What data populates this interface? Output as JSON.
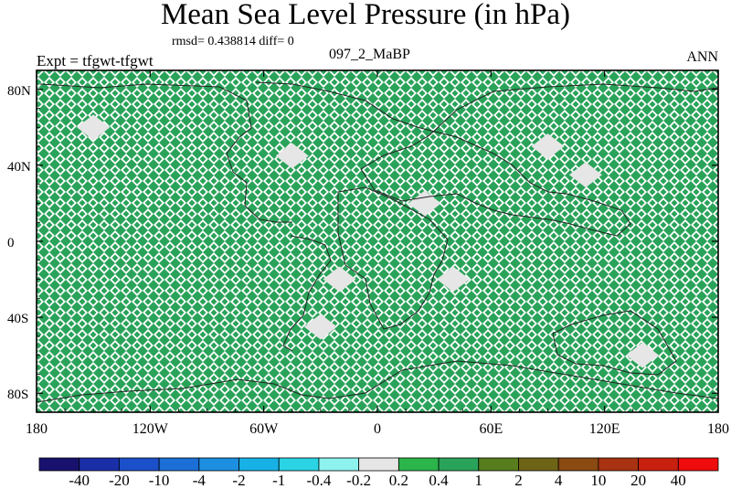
{
  "title": "Mean Sea Level Pressure (in hPa)",
  "stats": {
    "rmsd_line": "rmsd= 0.438814 diff= 0",
    "expt": "Expt = tfgwt-tfgwt",
    "case": "097_2_MaBP",
    "season": "ANN"
  },
  "chart_data": {
    "type": "heatmap",
    "title": "Mean Sea Level Pressure (in hPa)",
    "field": "difference map, nearly uniform 0.2 to 0.4 with small patches -0.2 to 0.2",
    "x_ticks": [
      "180",
      "120W",
      "60W",
      "0",
      "60E",
      "120E",
      "180"
    ],
    "x_tick_values": [
      -180,
      -120,
      -60,
      0,
      60,
      120,
      180
    ],
    "y_ticks": [
      "80N",
      "40N",
      "0",
      "40S",
      "80S"
    ],
    "y_tick_values": [
      80,
      40,
      0,
      -40,
      -80
    ],
    "xlim": [
      -180,
      180
    ],
    "ylim": [
      -90,
      90
    ],
    "dominant_bin": "0.2 to 0.4",
    "colorbar": {
      "labels": [
        "-40",
        "-20",
        "-10",
        "-4",
        "-2",
        "-1",
        "-0.4",
        "-0.2",
        "0.2",
        "0.4",
        "1",
        "2",
        "4",
        "10",
        "20",
        "40"
      ],
      "colors": [
        "#19116e",
        "#1a2ea8",
        "#1c4fca",
        "#1c6fd6",
        "#1d8fe0",
        "#17b1e6",
        "#2bd4e4",
        "#8ef2ee",
        "#e6e6e6",
        "#2bb54a",
        "#2aa35a",
        "#577d1c",
        "#6e6416",
        "#8a4a12",
        "#a83212",
        "#c8200f",
        "#ef0c0c"
      ]
    },
    "patches_light": [
      {
        "lon": -150,
        "lat": 60
      },
      {
        "lon": -45,
        "lat": 45
      },
      {
        "lon": 25,
        "lat": 20
      },
      {
        "lon": 90,
        "lat": 50
      },
      {
        "lon": 110,
        "lat": 35
      },
      {
        "lon": -20,
        "lat": -20
      },
      {
        "lon": 40,
        "lat": -20
      },
      {
        "lon": -30,
        "lat": -45
      },
      {
        "lon": 140,
        "lat": -60
      }
    ]
  }
}
